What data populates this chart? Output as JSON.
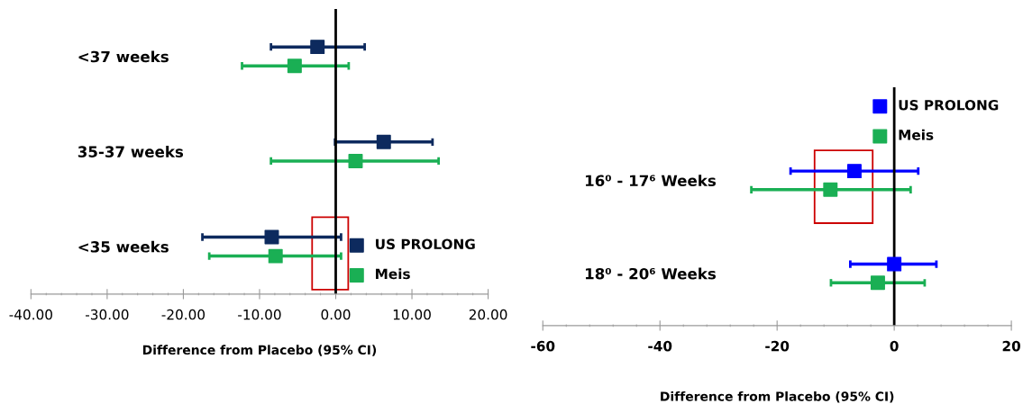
{
  "chart_data": [
    {
      "type": "scatter",
      "xlabel": "Difference from Placebo (95% CI)",
      "categories": [
        "<37 weeks",
        "35-37 weeks",
        "<35 weeks"
      ],
      "series": [
        {
          "name": "US PROLONG",
          "color": "#0d2a5e",
          "values": [
            -2.4,
            6.3,
            -8.4
          ],
          "errors": [
            [
              -8.5,
              3.8
            ],
            [
              -0.1,
              12.7
            ],
            [
              -17.5,
              0.7
            ]
          ]
        },
        {
          "name": "Meis",
          "color": "#1aaf54",
          "values": [
            -5.4,
            2.6,
            -7.9
          ],
          "errors": [
            [
              -12.3,
              1.7
            ],
            [
              -8.5,
              13.5
            ],
            [
              -16.6,
              0.7
            ]
          ]
        }
      ],
      "orientation": "horizontal",
      "xlim": [
        -40,
        20
      ],
      "xticks": [
        {
          "value": -40,
          "label": "-40.00"
        },
        {
          "value": -30,
          "label": "-30.00"
        },
        {
          "value": -20,
          "label": "-20.00"
        },
        {
          "value": -10,
          "label": "-10.00"
        },
        {
          "value": 0,
          "label": "0.00"
        },
        {
          "value": 10,
          "label": "10.00"
        },
        {
          "value": 20,
          "label": "20.00"
        }
      ],
      "ref_lines": [
        {
          "axis": "x",
          "value": 0,
          "color": "#000000"
        }
      ],
      "marker": "square",
      "legend": "bottom right",
      "grid": false
    },
    {
      "type": "scatter",
      "xlabel": "Difference from Placebo (95% CI)",
      "categories": [
        "16⁰ - 17⁶ Weeks",
        "18⁰ - 20⁶ Weeks"
      ],
      "series": [
        {
          "name": "US PROLONG",
          "color": "#0000ff",
          "values": [
            -6.8,
            0
          ],
          "errors": [
            [
              -17.7,
              4.1
            ],
            [
              -7.5,
              7.2
            ]
          ]
        },
        {
          "name": "Meis",
          "color": "#1aaf54",
          "values": [
            -10.9,
            -2.8
          ],
          "errors": [
            [
              -24.4,
              2.8
            ],
            [
              -10.8,
              5.2
            ]
          ]
        }
      ],
      "orientation": "horizontal",
      "xlim": [
        -60,
        20
      ],
      "xticks": [
        -60,
        -40,
        -20,
        0,
        20
      ],
      "ref_lines": [
        {
          "axis": "x",
          "value": 0,
          "color": "#000000"
        }
      ],
      "marker": "square",
      "legend": "top right",
      "grid": false
    }
  ]
}
